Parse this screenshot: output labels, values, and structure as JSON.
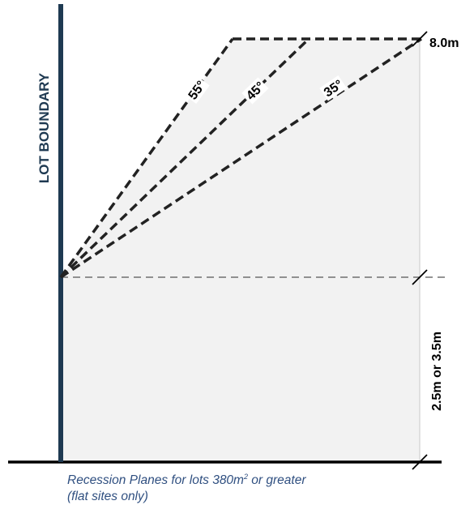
{
  "diagram": {
    "boundary_label": "LOT BOUNDARY",
    "height_top_label": "8.0m",
    "height_bottom_label": "2.5m or 3.5m",
    "angles": [
      {
        "label": "55°"
      },
      {
        "label": "45°"
      },
      {
        "label": "35°"
      }
    ],
    "caption": {
      "line1_prefix": "Recession Planes for lots 380m",
      "line1_superscript": "2",
      "line1_suffix": " or greater",
      "line2": "(flat sites only)"
    },
    "colors": {
      "boundary": "#1f3a52",
      "fill": "#f2f2f2",
      "dashes": "#222222",
      "caption": "#2f4f80"
    }
  }
}
